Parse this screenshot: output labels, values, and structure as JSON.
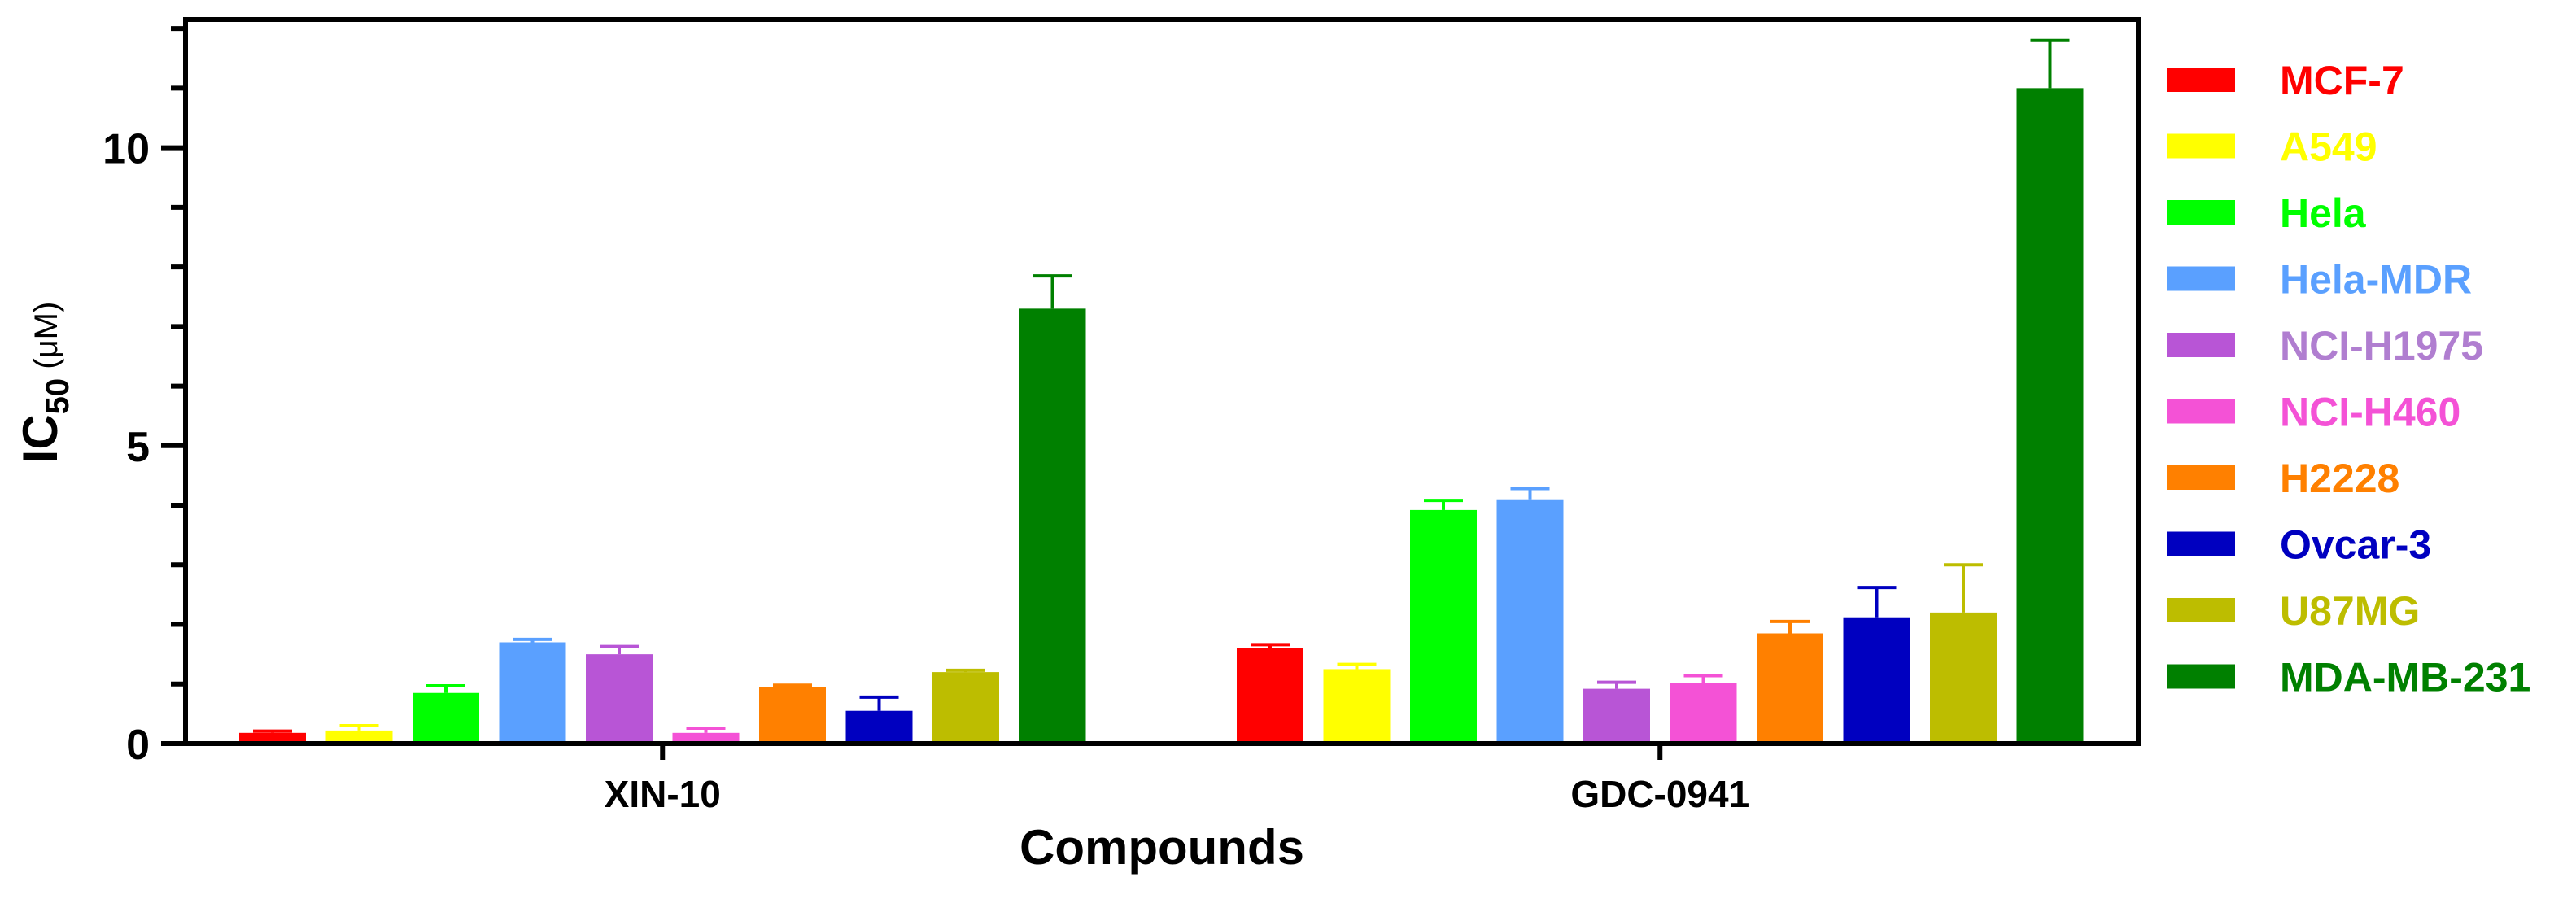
{
  "chart_data": {
    "type": "bar",
    "xlabel": "Compounds",
    "ylabel": "IC",
    "ylabel_sub": "50",
    "ylabel_unit": " (μM)",
    "categories": [
      "XIN-10",
      "GDC-0941"
    ],
    "ylim": [
      0,
      12
    ],
    "yticks": [
      "0",
      "5",
      "10"
    ],
    "grid": false,
    "legend_position": "right",
    "series": [
      {
        "name": "MCF-7",
        "color": "#ff0000",
        "values": [
          0.18,
          1.6
        ],
        "errors": [
          0.03,
          0.06
        ]
      },
      {
        "name": "A549",
        "color": "#ffff00",
        "values": [
          0.22,
          1.25
        ],
        "errors": [
          0.08,
          0.08
        ]
      },
      {
        "name": "Hela",
        "color": "#00ff00",
        "values": [
          0.85,
          3.92
        ],
        "errors": [
          0.12,
          0.16
        ]
      },
      {
        "name": "Hela-MDR",
        "color": "#5aa0ff",
        "values": [
          1.7,
          4.1
        ],
        "errors": [
          0.05,
          0.18
        ]
      },
      {
        "name": "NCI-H1975",
        "color": "#b855d6",
        "values": [
          1.5,
          0.92
        ],
        "errors": [
          0.13,
          0.11
        ]
      },
      {
        "name": "NCI-H460",
        "color": "#f452d6",
        "values": [
          0.18,
          1.02
        ],
        "errors": [
          0.08,
          0.12
        ]
      },
      {
        "name": "H2228",
        "color": "#ff8000",
        "values": [
          0.95,
          1.85
        ],
        "errors": [
          0.03,
          0.2
        ]
      },
      {
        "name": "Ovcar-3",
        "color": "#0000c0",
        "values": [
          0.55,
          2.12
        ],
        "errors": [
          0.23,
          0.5
        ]
      },
      {
        "name": "U87MG",
        "color": "#bdbd00",
        "values": [
          1.2,
          2.2
        ],
        "errors": [
          0.03,
          0.8
        ]
      },
      {
        "name": "MDA-MB-231",
        "color": "#008000",
        "values": [
          7.3,
          11.0
        ],
        "errors": [
          0.55,
          0.8
        ]
      }
    ],
    "legend_text_colors": [
      "#ff0000",
      "#ffff00",
      "#00ff00",
      "#5aa0ff",
      "#b07ed0",
      "#f452d6",
      "#ff8000",
      "#0000c0",
      "#bdbd00",
      "#008000"
    ]
  }
}
